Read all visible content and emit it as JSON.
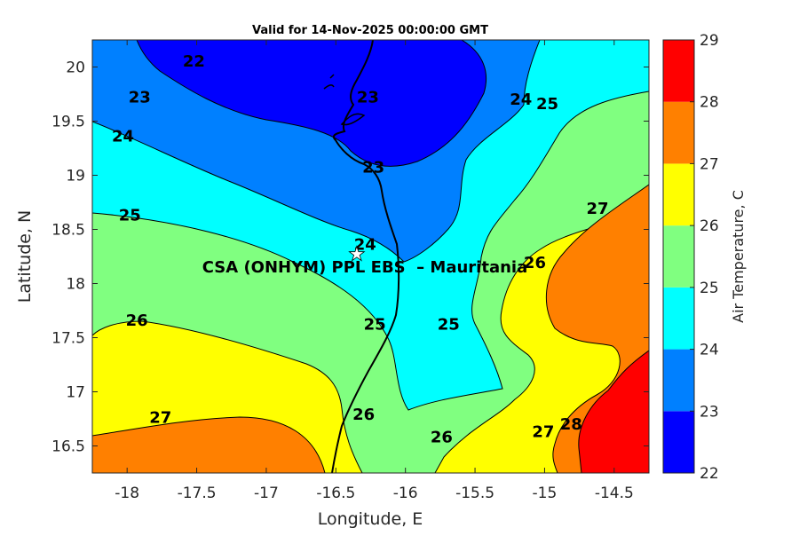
{
  "figure": {
    "title": "Valid for 14-Nov-2025 00:00:00 GMT",
    "xlabel": "Longitude, E",
    "ylabel": "Latitude, N",
    "site_label": "CSA (ONHYM) PPL EBS  – Mauritania",
    "site_marker": "star-icon",
    "xlim": [
      -18.25,
      -14.25
    ],
    "ylim": [
      16.25,
      20.25
    ],
    "site_lon": -16.35,
    "site_lat": 18.28
  },
  "colorbar": {
    "label": "Air Temperature, C",
    "levels": [
      22,
      23,
      24,
      25,
      26,
      27,
      28,
      29
    ],
    "colors": [
      "#0000ff",
      "#0080ff",
      "#00ffff",
      "#80ff80",
      "#ffff00",
      "#ff8000",
      "#ff0000",
      "#800000"
    ]
  },
  "chart_data": {
    "type": "heatmap",
    "subtype": "filled-contour-map",
    "title": "Valid for 14-Nov-2025 00:00:00 GMT",
    "xlabel": "Longitude, E",
    "ylabel": "Latitude, N",
    "xlim": [
      -18.25,
      -14.25
    ],
    "ylim": [
      16.25,
      20.25
    ],
    "xticks": [
      -18,
      -17.5,
      -17,
      -16.5,
      -16,
      -15.5,
      -15,
      -14.5
    ],
    "yticks": [
      16.5,
      17,
      17.5,
      18,
      18.5,
      19,
      19.5,
      20
    ],
    "colorbar_ticks": [
      22,
      23,
      24,
      25,
      26,
      27,
      28,
      29
    ],
    "contour_labels": [
      {
        "value": "22",
        "lon": -17.52,
        "lat": 20.06
      },
      {
        "value": "23",
        "lon": -17.91,
        "lat": 19.73
      },
      {
        "value": "24",
        "lon": -18.03,
        "lat": 19.37
      },
      {
        "value": "25",
        "lon": -17.98,
        "lat": 18.64
      },
      {
        "value": "26",
        "lon": -17.93,
        "lat": 17.67
      },
      {
        "value": "27",
        "lon": -17.76,
        "lat": 16.77
      },
      {
        "value": "23",
        "lon": -16.27,
        "lat": 19.73
      },
      {
        "value": "23",
        "lon": -16.23,
        "lat": 19.08
      },
      {
        "value": "24",
        "lon": -16.29,
        "lat": 18.37
      },
      {
        "value": "25",
        "lon": -16.22,
        "lat": 17.63
      },
      {
        "value": "26",
        "lon": -16.3,
        "lat": 16.8
      },
      {
        "value": "24",
        "lon": -15.17,
        "lat": 19.71
      },
      {
        "value": "25",
        "lon": -14.98,
        "lat": 19.67
      },
      {
        "value": "25",
        "lon": -15.69,
        "lat": 17.63
      },
      {
        "value": "26",
        "lon": -15.07,
        "lat": 18.2
      },
      {
        "value": "26",
        "lon": -15.74,
        "lat": 16.59
      },
      {
        "value": "27",
        "lon": -14.62,
        "lat": 18.7
      },
      {
        "value": "27",
        "lon": -15.01,
        "lat": 16.64
      },
      {
        "value": "28",
        "lon": -14.81,
        "lat": 16.71
      }
    ]
  }
}
